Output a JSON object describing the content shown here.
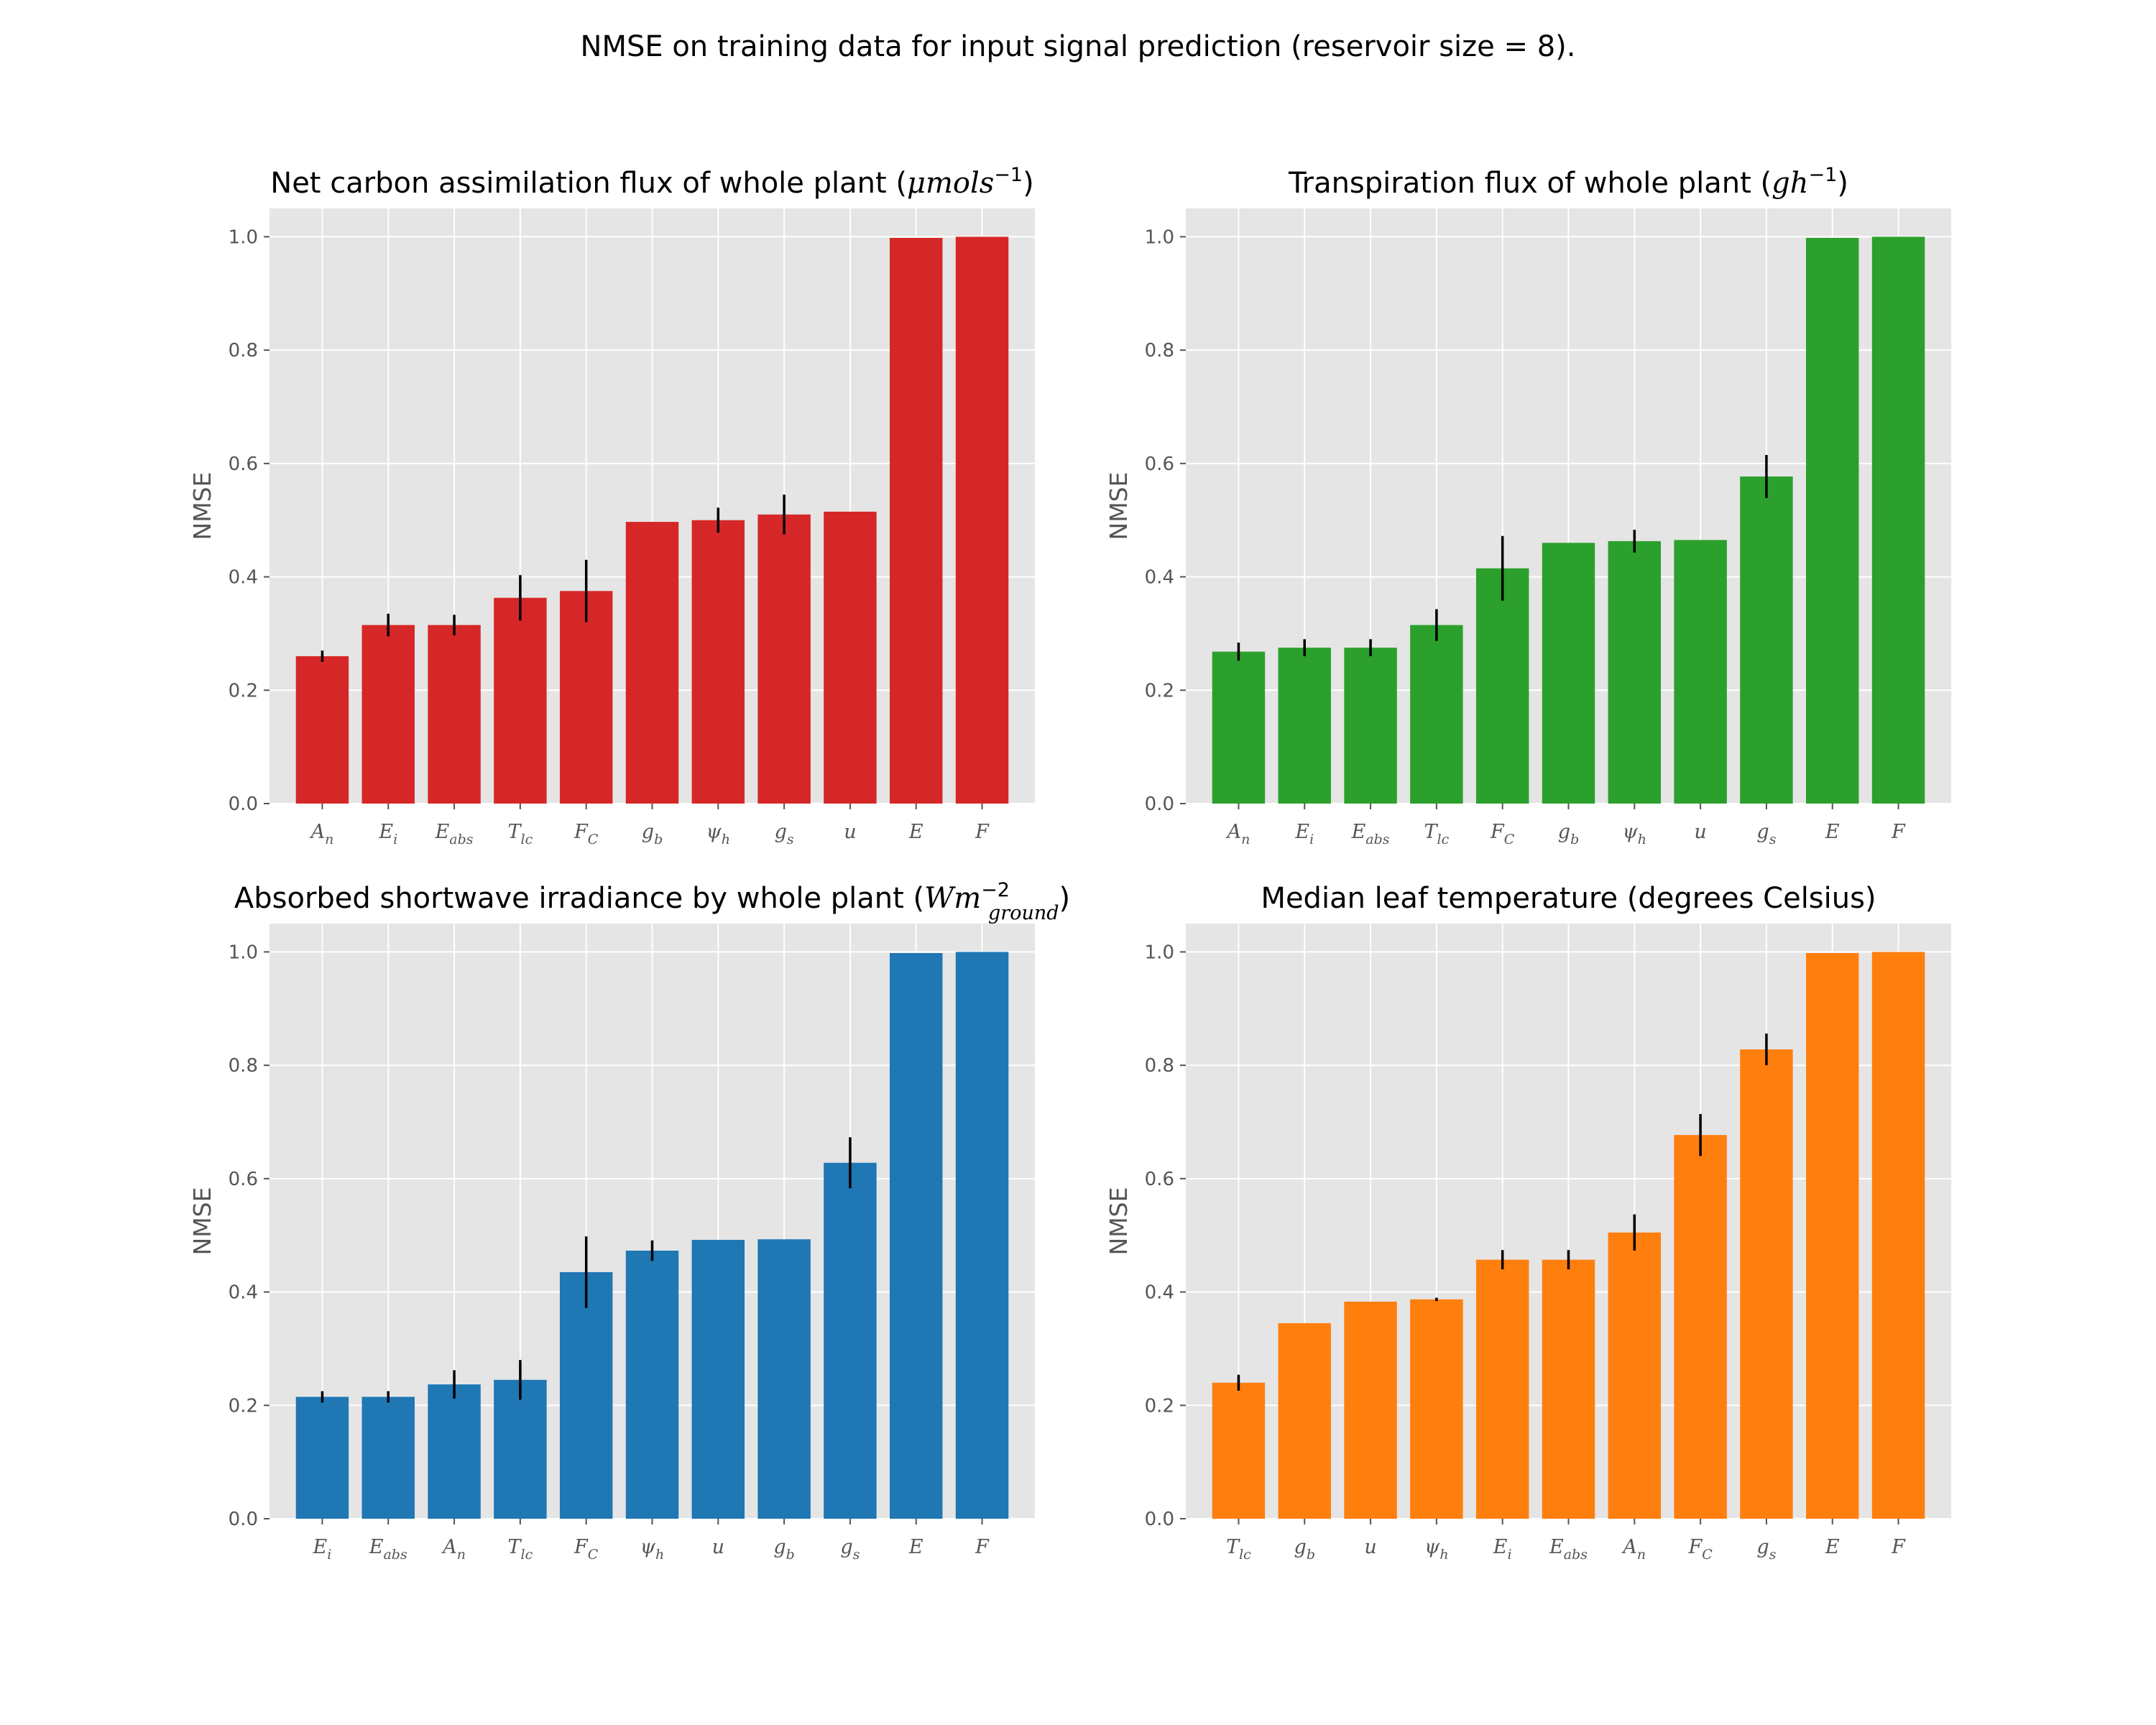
{
  "figure": {
    "suptitle": "NMSE on training data for input signal prediction (reservoir size = 8)."
  },
  "chart_data": [
    {
      "type": "bar",
      "title": "Net carbon assimilation flux of whole plant (μmols⁻¹)",
      "title_parts": {
        "pre": "Net carbon assimilation flux of whole plant (",
        "math": "μmols",
        "sup": "−1",
        "sub": "",
        "post": ")"
      },
      "ylabel": "NMSE",
      "ylim": [
        0,
        1.05
      ],
      "yticks": [
        "0.0",
        "0.2",
        "0.4",
        "0.6",
        "0.8",
        "1.0"
      ],
      "color": "#d62728",
      "categories": [
        {
          "base": "A",
          "sub": "n"
        },
        {
          "base": "E",
          "sub": "i"
        },
        {
          "base": "E",
          "sub": "abs"
        },
        {
          "base": "T",
          "sub": "lc"
        },
        {
          "base": "F",
          "sub": "C"
        },
        {
          "base": "g",
          "sub": "b"
        },
        {
          "base": "ψ",
          "sub": "h"
        },
        {
          "base": "g",
          "sub": "s"
        },
        {
          "base": "u",
          "sub": ""
        },
        {
          "base": "E",
          "sub": ""
        },
        {
          "base": "F",
          "sub": ""
        }
      ],
      "values": [
        0.26,
        0.315,
        0.315,
        0.363,
        0.375,
        0.497,
        0.5,
        0.51,
        0.515,
        0.998,
        1.0
      ],
      "errors": [
        0.01,
        0.02,
        0.018,
        0.04,
        0.055,
        0.0,
        0.022,
        0.035,
        0.0,
        0.0,
        0.0
      ]
    },
    {
      "type": "bar",
      "title": "Transpiration flux of whole plant (gh⁻¹)",
      "title_parts": {
        "pre": "Transpiration flux of whole plant (",
        "math": "gh",
        "sup": "−1",
        "sub": "",
        "post": ")"
      },
      "ylabel": "NMSE",
      "ylim": [
        0,
        1.05
      ],
      "yticks": [
        "0.0",
        "0.2",
        "0.4",
        "0.6",
        "0.8",
        "1.0"
      ],
      "color": "#2ca02c",
      "categories": [
        {
          "base": "A",
          "sub": "n"
        },
        {
          "base": "E",
          "sub": "i"
        },
        {
          "base": "E",
          "sub": "abs"
        },
        {
          "base": "T",
          "sub": "lc"
        },
        {
          "base": "F",
          "sub": "C"
        },
        {
          "base": "g",
          "sub": "b"
        },
        {
          "base": "ψ",
          "sub": "h"
        },
        {
          "base": "u",
          "sub": ""
        },
        {
          "base": "g",
          "sub": "s"
        },
        {
          "base": "E",
          "sub": ""
        },
        {
          "base": "F",
          "sub": ""
        }
      ],
      "values": [
        0.268,
        0.275,
        0.275,
        0.315,
        0.415,
        0.46,
        0.463,
        0.465,
        0.577,
        0.998,
        1.0
      ],
      "errors": [
        0.016,
        0.015,
        0.015,
        0.028,
        0.057,
        0.0,
        0.02,
        0.0,
        0.038,
        0.0,
        0.0
      ]
    },
    {
      "type": "bar",
      "title": "Absorbed shortwave irradiance by whole plant (Wm⁻²ground)",
      "title_parts": {
        "pre": "Absorbed shortwave irradiance by whole plant (",
        "math": "Wm",
        "sup": "−2",
        "sub": "ground",
        "post": ")"
      },
      "ylabel": "NMSE",
      "ylim": [
        0,
        1.05
      ],
      "yticks": [
        "0.0",
        "0.2",
        "0.4",
        "0.6",
        "0.8",
        "1.0"
      ],
      "color": "#1f77b4",
      "categories": [
        {
          "base": "E",
          "sub": "i"
        },
        {
          "base": "E",
          "sub": "abs"
        },
        {
          "base": "A",
          "sub": "n"
        },
        {
          "base": "T",
          "sub": "lc"
        },
        {
          "base": "F",
          "sub": "C"
        },
        {
          "base": "ψ",
          "sub": "h"
        },
        {
          "base": "u",
          "sub": ""
        },
        {
          "base": "g",
          "sub": "b"
        },
        {
          "base": "g",
          "sub": "s"
        },
        {
          "base": "E",
          "sub": ""
        },
        {
          "base": "F",
          "sub": ""
        }
      ],
      "values": [
        0.215,
        0.215,
        0.237,
        0.245,
        0.435,
        0.473,
        0.492,
        0.493,
        0.628,
        0.998,
        1.0
      ],
      "errors": [
        0.01,
        0.01,
        0.025,
        0.035,
        0.063,
        0.018,
        0.0,
        0.0,
        0.045,
        0.0,
        0.0
      ]
    },
    {
      "type": "bar",
      "title": "Median leaf temperature (degrees Celsius)",
      "title_parts": {
        "pre": "Median leaf temperature (degrees Celsius)",
        "math": "",
        "sup": "",
        "sub": "",
        "post": ""
      },
      "ylabel": "NMSE",
      "ylim": [
        0,
        1.05
      ],
      "yticks": [
        "0.0",
        "0.2",
        "0.4",
        "0.6",
        "0.8",
        "1.0"
      ],
      "color": "#ff7f0e",
      "categories": [
        {
          "base": "T",
          "sub": "lc"
        },
        {
          "base": "g",
          "sub": "b"
        },
        {
          "base": "u",
          "sub": ""
        },
        {
          "base": "ψ",
          "sub": "h"
        },
        {
          "base": "E",
          "sub": "i"
        },
        {
          "base": "E",
          "sub": "abs"
        },
        {
          "base": "A",
          "sub": "n"
        },
        {
          "base": "F",
          "sub": "C"
        },
        {
          "base": "g",
          "sub": "s"
        },
        {
          "base": "E",
          "sub": ""
        },
        {
          "base": "F",
          "sub": ""
        }
      ],
      "values": [
        0.24,
        0.345,
        0.383,
        0.387,
        0.457,
        0.457,
        0.505,
        0.677,
        0.828,
        0.998,
        1.0
      ],
      "errors": [
        0.014,
        0.0,
        0.0,
        0.003,
        0.017,
        0.017,
        0.032,
        0.037,
        0.028,
        0.0,
        0.0
      ]
    }
  ]
}
